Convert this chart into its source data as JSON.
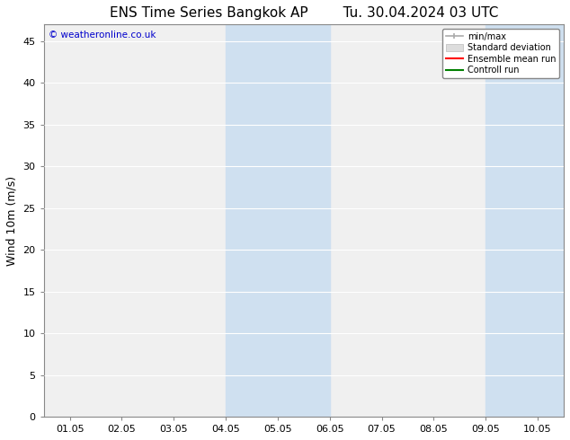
{
  "title_left": "ENS Time Series Bangkok AP",
  "title_right": "Tu. 30.04.2024 03 UTC",
  "ylabel": "Wind 10m (m/s)",
  "watermark": "© weatheronline.co.uk",
  "background_color": "#ffffff",
  "plot_bg_color": "#f0f0f0",
  "ylim": [
    0,
    47
  ],
  "yticks": [
    0,
    5,
    10,
    15,
    20,
    25,
    30,
    35,
    40,
    45
  ],
  "xtick_labels": [
    "01.05",
    "02.05",
    "03.05",
    "04.05",
    "05.05",
    "06.05",
    "07.05",
    "08.05",
    "09.05",
    "10.05"
  ],
  "xtick_positions": [
    0,
    1,
    2,
    3,
    4,
    5,
    6,
    7,
    8,
    9
  ],
  "shaded_regions": [
    {
      "xmin": 3.0,
      "xmax": 5.0,
      "color": "#cfe0f0"
    },
    {
      "xmin": 8.0,
      "xmax": 9.5,
      "color": "#cfe0f0"
    }
  ],
  "legend_entries": [
    {
      "label": "min/max",
      "color": "#aaaaaa",
      "lw": 1.5
    },
    {
      "label": "Standard deviation",
      "color": "#cccccc",
      "lw": 8
    },
    {
      "label": "Ensemble mean run",
      "color": "#ff0000",
      "lw": 1.5
    },
    {
      "label": "Controll run",
      "color": "#008000",
      "lw": 1.5
    }
  ],
  "title_fontsize": 11,
  "axis_fontsize": 9,
  "tick_fontsize": 8,
  "watermark_color": "#0000cc",
  "grid_color": "#ffffff",
  "spine_color": "#888888"
}
